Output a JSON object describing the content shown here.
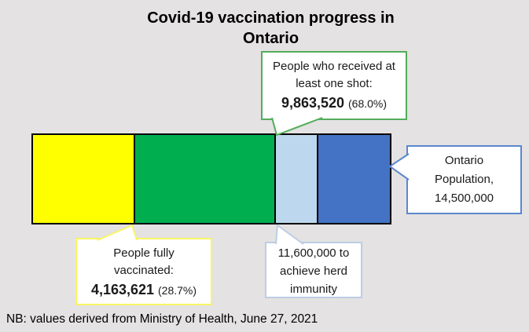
{
  "title": {
    "line1": "Covid-19 vaccination progress in",
    "line2": "Ontario"
  },
  "note": "NB: values derived from Ministry of Health, June 27, 2021",
  "colors": {
    "background": "#E4E2E2",
    "bar_border": "#000000",
    "yellow": "#FFFF00",
    "green": "#00AE50",
    "light_blue": "#BDD7EE",
    "blue": "#4472C4",
    "callout_green_border": "#54AC5B",
    "callout_yellow_border": "#F8F566",
    "callout_bluegray_border": "#BCCDE4",
    "callout_blue_border": "#5B87CE"
  },
  "callouts": {
    "one_shot": {
      "line1": "People who received at",
      "line2": "least one shot:",
      "value": "9,863,520",
      "pct": "(68.0%)"
    },
    "fully_vaccinated": {
      "line1": "People fully",
      "line2": "vaccinated:",
      "value": "4,163,621",
      "pct": "(28.7%)"
    },
    "herd_immunity": {
      "line1": "11,600,000 to",
      "line2": "achieve herd",
      "line3": "immunity"
    },
    "population": {
      "line1": "Ontario",
      "line2": "Population,",
      "line3": "14,500,000"
    }
  },
  "chart_data": {
    "type": "bar",
    "title": "Covid-19 vaccination progress in Ontario",
    "orientation": "horizontal",
    "unit": "people",
    "total_population": 14500000,
    "axis": "proportional single stacked bar, 0% to 100% of Ontario population",
    "segments": [
      {
        "label": "People fully vaccinated",
        "cumulative_value": 4163621,
        "cumulative_pct": 28.7,
        "color_key": "yellow"
      },
      {
        "label": "People who received at least one shot",
        "cumulative_value": 9863520,
        "cumulative_pct": 68.0,
        "color_key": "green"
      },
      {
        "label": "Needed to achieve herd immunity",
        "cumulative_value": 11600000,
        "cumulative_pct": 80.0,
        "color_key": "light_blue"
      },
      {
        "label": "Ontario Population",
        "cumulative_value": 14500000,
        "cumulative_pct": 100.0,
        "color_key": "blue"
      }
    ],
    "note": "NB: values derived from Ministry of Health, June 27, 2021",
    "legend": "none (labelled via callouts)"
  }
}
